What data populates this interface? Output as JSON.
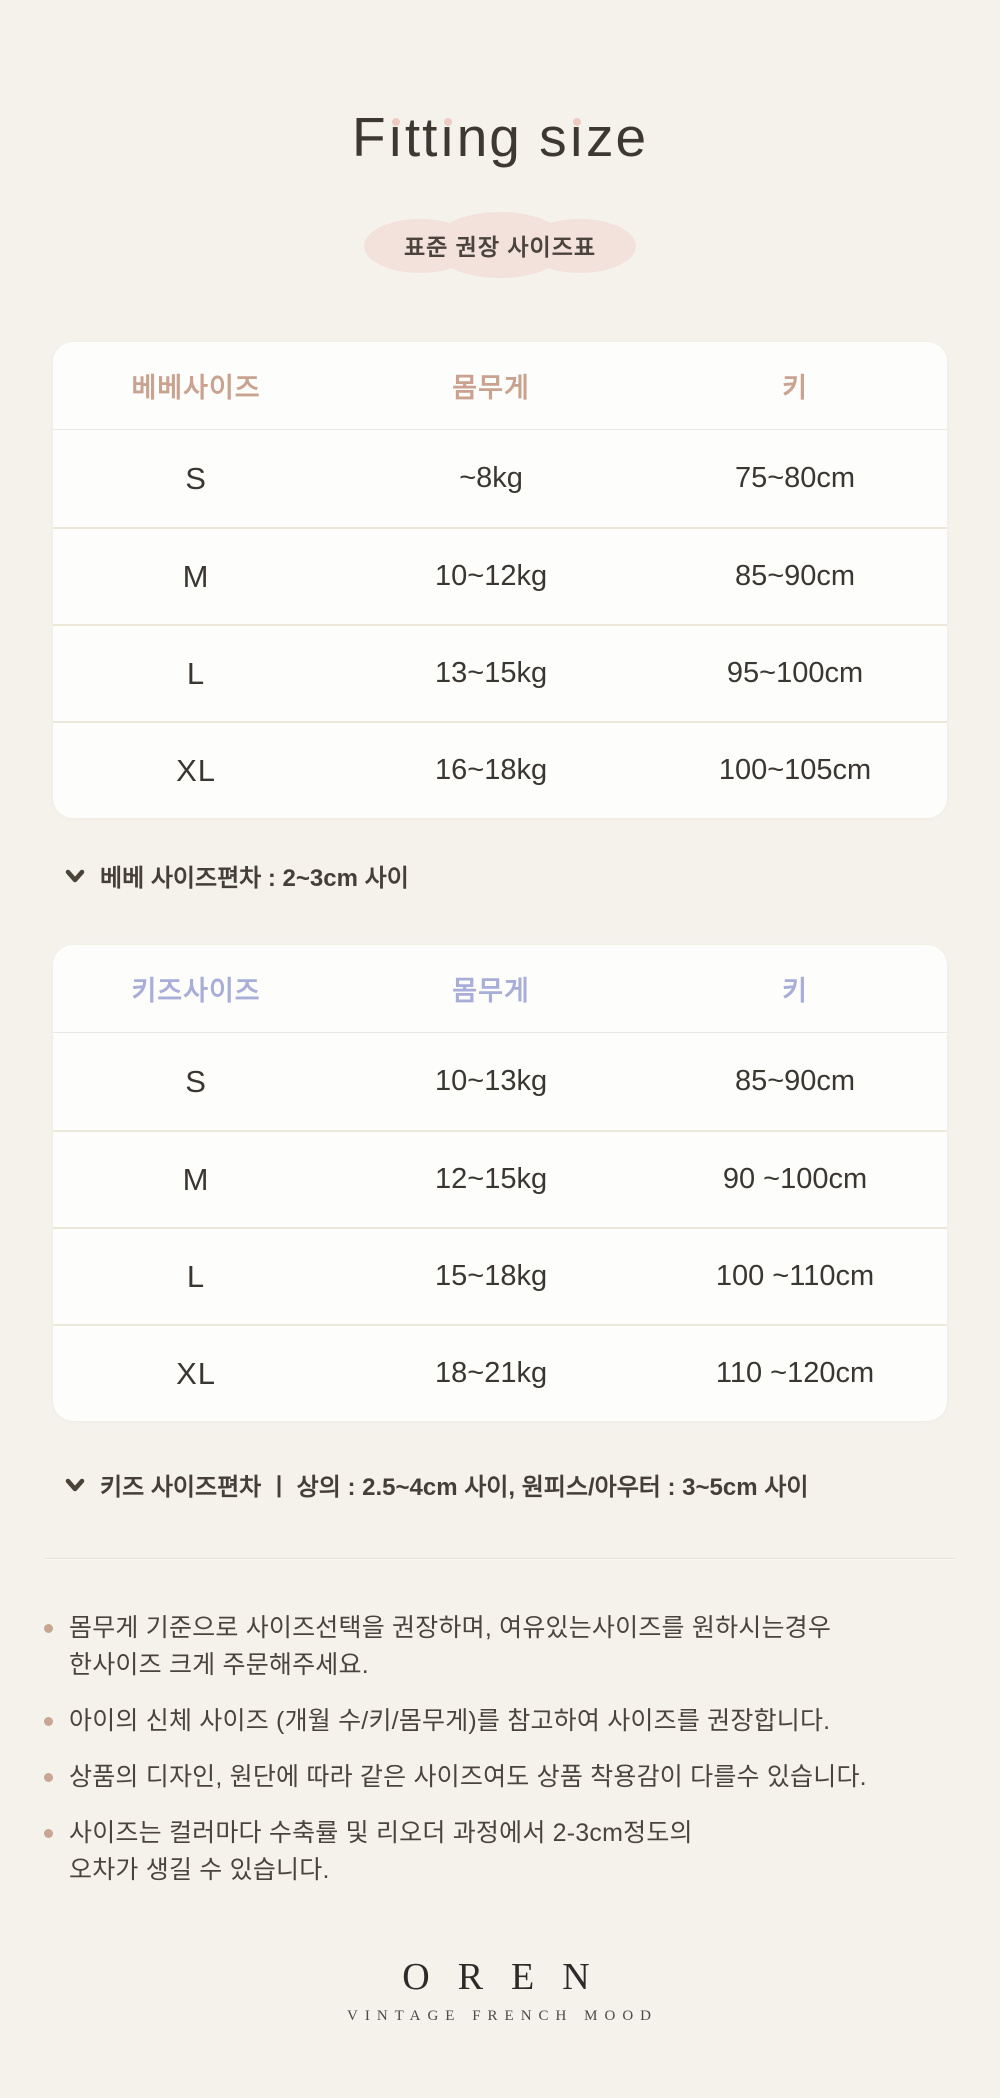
{
  "page": {
    "background_color": "#f5f2ec",
    "title": "Fitting size",
    "title_dot_color": "#edcbc3",
    "badge_label": "표준 권장 사이즈표",
    "badge_color": "#f3e1dc"
  },
  "bebe_table": {
    "accent_color": "#c9a290",
    "headers": [
      "베베사이즈",
      "몸무게",
      "키"
    ],
    "rows": [
      {
        "size": "S",
        "weight": "~8kg",
        "height": "75~80cm"
      },
      {
        "size": "M",
        "weight": "10~12kg",
        "height": "85~90cm"
      },
      {
        "size": "L",
        "weight": "13~15kg",
        "height": "95~100cm"
      },
      {
        "size": "XL",
        "weight": "16~18kg",
        "height": "100~105cm"
      }
    ],
    "note": "베베 사이즈편차 : 2~3cm 사이"
  },
  "kids_table": {
    "accent_color": "#a9aed8",
    "headers": [
      "키즈사이즈",
      "몸무게",
      "키"
    ],
    "rows": [
      {
        "size": "S",
        "weight": "10~13kg",
        "height": "85~90cm"
      },
      {
        "size": "M",
        "weight": "12~15kg",
        "height": "90 ~100cm"
      },
      {
        "size": "L",
        "weight": "15~18kg",
        "height": "100 ~110cm"
      },
      {
        "size": "XL",
        "weight": "18~21kg",
        "height": "110 ~120cm"
      }
    ],
    "note": "키즈 사이즈편차 ㅣ 상의 : 2.5~4cm 사이, 원피스/아우터 : 3~5cm 사이"
  },
  "notices": [
    "몸무게 기준으로 사이즈선택을 권장하며, 여유있는사이즈를 원하시는경우\n한사이즈 크게 주문해주세요.",
    "아이의 신체 사이즈 (개월 수/키/몸무게)를 참고하여 사이즈를 권장합니다.",
    "상품의 디자인, 원단에 따라 같은 사이즈여도 상품 착용감이 다를수 있습니다.",
    "사이즈는 컬러마다 수축률 및 리오더 과정에서 2-3cm정도의\n오차가 생길 수 있습니다."
  ],
  "footer": {
    "logo": "OREN",
    "tagline": "VINTAGE FRENCH MOOD"
  }
}
